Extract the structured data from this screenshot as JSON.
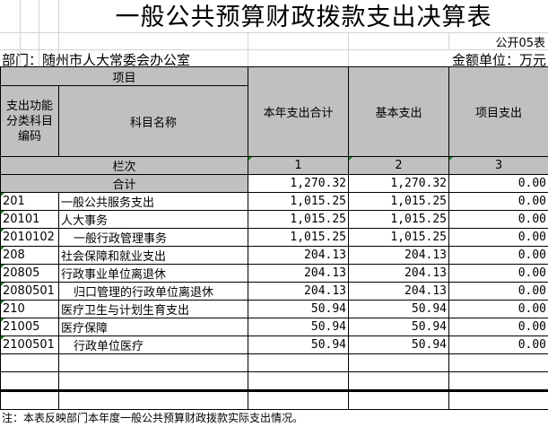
{
  "title": "一般公共预算财政拨款支出决算表",
  "form_code": "公开05表",
  "department": "部门：随州市人大常委会办公室",
  "unit": "金额单位：万元",
  "header": {
    "project": "项目",
    "code": "支出功能分类科目编码",
    "name": "科目名称",
    "col1": "本年支出合计",
    "col2": "基本支出",
    "col3": "项目支出",
    "seq_label": "栏次",
    "seq": [
      "1",
      "2",
      "3"
    ]
  },
  "total": {
    "label": "合计",
    "total": "1,270.32",
    "basic": "1,270.32",
    "project": "0.00"
  },
  "rows": [
    {
      "code": "201",
      "name": "一般公共服务支出",
      "total": "1,015.25",
      "basic": "1,015.25",
      "project": "0.00",
      "indent": false
    },
    {
      "code": "20101",
      "name": "人大事务",
      "total": "1,015.25",
      "basic": "1,015.25",
      "project": "0.00",
      "indent": false
    },
    {
      "code": "2010102",
      "name": "一般行政管理事务",
      "total": "1,015.25",
      "basic": "1,015.25",
      "project": "0.00",
      "indent": true
    },
    {
      "code": "208",
      "name": "社会保障和就业支出",
      "total": "204.13",
      "basic": "204.13",
      "project": "0.00",
      "indent": false
    },
    {
      "code": "20805",
      "name": "行政事业单位离退休",
      "total": "204.13",
      "basic": "204.13",
      "project": "0.00",
      "indent": false
    },
    {
      "code": "2080501",
      "name": "归口管理的行政单位离退休",
      "total": "204.13",
      "basic": "204.13",
      "project": "0.00",
      "indent": true
    },
    {
      "code": "210",
      "name": "医疗卫生与计划生育支出",
      "total": "50.94",
      "basic": "50.94",
      "project": "0.00",
      "indent": false
    },
    {
      "code": "21005",
      "name": "医疗保障",
      "total": "50.94",
      "basic": "50.94",
      "project": "0.00",
      "indent": false
    },
    {
      "code": "2100501",
      "name": "行政单位医疗",
      "total": "50.94",
      "basic": "50.94",
      "project": "0.00",
      "indent": true
    }
  ],
  "note": "注：本表反映部门本年度一般公共预算财政拨款实际支出情况。"
}
